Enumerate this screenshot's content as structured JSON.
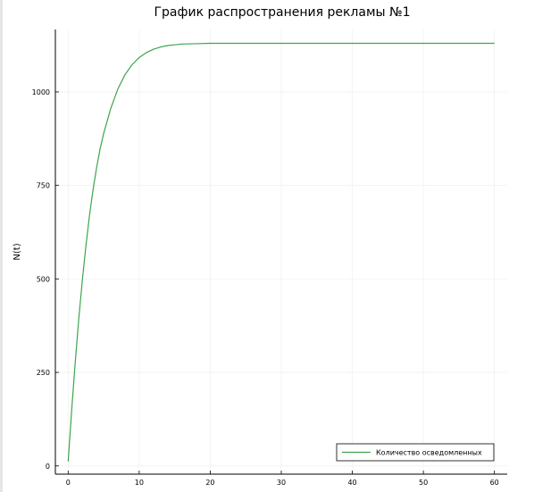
{
  "chart_data": {
    "type": "line",
    "title": "График распространения рекламы №1",
    "xlabel": "",
    "ylabel": "N(t)",
    "xlim": [
      -1.8,
      61.8
    ],
    "ylim": [
      -22,
      1167
    ],
    "x_ticks": [
      0,
      10,
      20,
      30,
      40,
      50,
      60
    ],
    "y_ticks": [
      0,
      250,
      500,
      750,
      1000
    ],
    "x_tick_labels": [
      "0",
      "10",
      "20",
      "30",
      "40",
      "50",
      "60"
    ],
    "y_tick_labels": [
      "0",
      "250",
      "500",
      "750",
      "1000"
    ],
    "grid": true,
    "legend": {
      "position": "bottom-right"
    },
    "series": [
      {
        "name": "Количество осведомленных",
        "color": "#3da44d",
        "x": [
          0,
          0.5,
          1,
          1.5,
          2,
          2.5,
          3,
          3.5,
          4,
          4.5,
          5,
          6,
          7,
          8,
          9,
          10,
          11,
          12,
          13,
          14,
          15,
          16,
          18,
          20,
          22,
          25,
          30,
          35,
          40,
          45,
          50,
          55,
          60
        ],
        "y": [
          12,
          150,
          278,
          394,
          497,
          588,
          669,
          738,
          797,
          848,
          889,
          956,
          1008,
          1046,
          1073,
          1092,
          1105,
          1114,
          1120,
          1124,
          1126,
          1128,
          1129,
          1130,
          1130,
          1130,
          1130,
          1130,
          1130,
          1130,
          1130,
          1130,
          1130
        ]
      }
    ]
  }
}
